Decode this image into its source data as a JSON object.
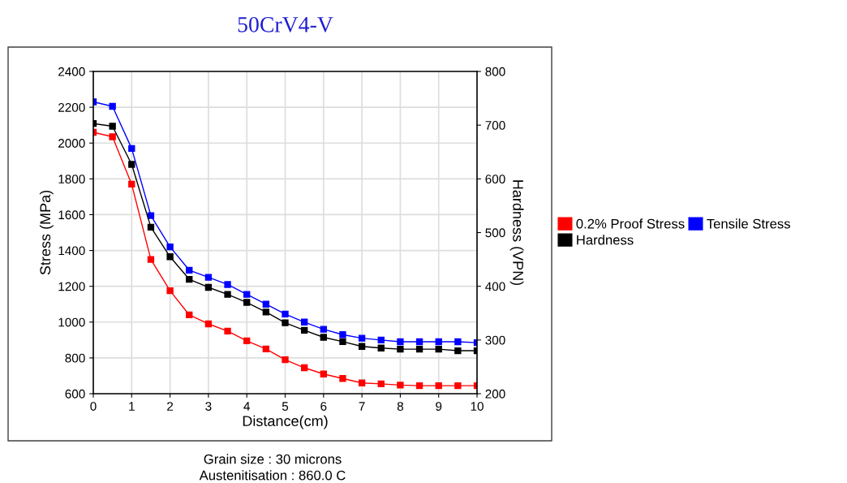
{
  "chart_data": {
    "type": "line",
    "title": "50CrV4-V",
    "xlabel": "Distance(cm)",
    "ylabel": "Stress (MPa)",
    "y2label": "Hardness (VPN)",
    "x": [
      0,
      0.5,
      1,
      1.5,
      2,
      2.5,
      3,
      3.5,
      4,
      4.5,
      5,
      5.5,
      6,
      6.5,
      7,
      7.5,
      8,
      8.5,
      9,
      9.5,
      10
    ],
    "series": [
      {
        "name": "0.2% Proof Stress",
        "color": "#ff0000",
        "values": [
          2060,
          2035,
          1770,
          1350,
          1175,
          1040,
          990,
          950,
          895,
          850,
          790,
          745,
          710,
          685,
          660,
          655,
          648,
          645,
          645,
          645,
          645
        ]
      },
      {
        "name": "Hardness",
        "color": "#000000",
        "axis": "y2",
        "values": [
          703,
          698,
          627,
          510,
          455,
          413,
          398,
          385,
          370,
          352,
          332,
          318,
          305,
          297,
          288,
          285,
          283,
          283,
          283,
          280,
          280
        ]
      },
      {
        "name": "Tensile Stress",
        "color": "#0000ff",
        "values": [
          2230,
          2205,
          1970,
          1595,
          1420,
          1290,
          1250,
          1210,
          1155,
          1100,
          1045,
          1000,
          960,
          930,
          910,
          900,
          890,
          890,
          890,
          890,
          885
        ]
      }
    ],
    "xlim": [
      0,
      10
    ],
    "xticks": [
      0,
      1,
      2,
      3,
      4,
      5,
      6,
      7,
      8,
      9,
      10
    ],
    "ylim": [
      600,
      2400
    ],
    "yticks": [
      600,
      800,
      1000,
      1200,
      1400,
      1600,
      1800,
      2000,
      2200,
      2400
    ],
    "y2lim": [
      200,
      800
    ],
    "y2ticks": [
      200,
      300,
      400,
      500,
      600,
      700,
      800
    ],
    "grid": true,
    "legend": "right",
    "marker": "square",
    "line_style": "solid",
    "annotations": [
      "Grain size : 30 microns",
      "Austenitisation : 860.0 C"
    ]
  }
}
